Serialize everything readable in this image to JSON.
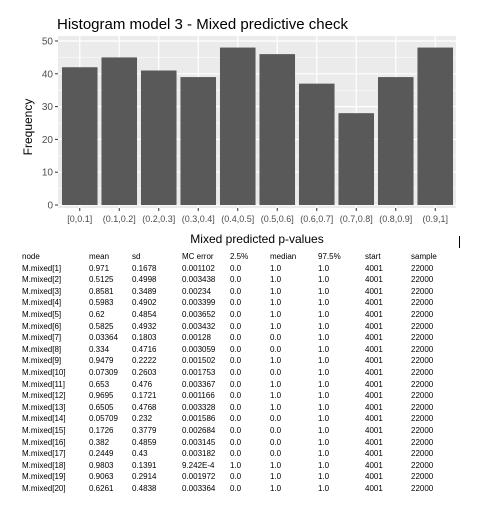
{
  "chart_data": {
    "type": "bar",
    "title": "Histogram model 3 - Mixed predictive check",
    "xlabel": "Mixed predicted p-values",
    "ylabel": "Frequency",
    "categories": [
      "[0,0.1]",
      "(0.1,0.2]",
      "(0.2,0.3]",
      "(0.3,0.4]",
      "(0.4,0.5]",
      "(0.5,0.6]",
      "(0.6,0.7]",
      "(0.7,0.8]",
      "(0.8,0.9]",
      "(0.9,1]"
    ],
    "values": [
      42,
      45,
      41,
      39,
      48,
      46,
      37,
      28,
      39,
      48
    ],
    "ylim": [
      0,
      50
    ],
    "yticks": [
      0,
      10,
      20,
      30,
      40,
      50
    ],
    "grid": true,
    "colors": {
      "panel": "#ebebeb",
      "bar": "#595959",
      "grid": "#ffffff"
    }
  },
  "table": {
    "headers": [
      "node",
      "mean",
      "sd",
      "MC error",
      "2.5%",
      "median",
      "97.5%",
      "start",
      "sample"
    ],
    "rows": [
      [
        "M.mixed[1]",
        "0.971",
        "0.1678",
        "0.001102",
        "0.0",
        "1.0",
        "1.0",
        "4001",
        "22000"
      ],
      [
        "M.mixed[2]",
        "0.5125",
        "0.4998",
        "0.003438",
        "0.0",
        "1.0",
        "1.0",
        "4001",
        "22000"
      ],
      [
        "M.mixed[3]",
        "0.8581",
        "0.3489",
        "0.00234",
        "0.0",
        "1.0",
        "1.0",
        "4001",
        "22000"
      ],
      [
        "M.mixed[4]",
        "0.5983",
        "0.4902",
        "0.003399",
        "0.0",
        "1.0",
        "1.0",
        "4001",
        "22000"
      ],
      [
        "M.mixed[5]",
        "0.62",
        "0.4854",
        "0.003652",
        "0.0",
        "1.0",
        "1.0",
        "4001",
        "22000"
      ],
      [
        "M.mixed[6]",
        "0.5825",
        "0.4932",
        "0.003432",
        "0.0",
        "1.0",
        "1.0",
        "4001",
        "22000"
      ],
      [
        "M.mixed[7]",
        "0.03364",
        "0.1803",
        "0.00128",
        "0.0",
        "0.0",
        "1.0",
        "4001",
        "22000"
      ],
      [
        "M.mixed[8]",
        "0.334",
        "0.4716",
        "0.003059",
        "0.0",
        "0.0",
        "1.0",
        "4001",
        "22000"
      ],
      [
        "M.mixed[9]",
        "0.9479",
        "0.2222",
        "0.001502",
        "0.0",
        "1.0",
        "1.0",
        "4001",
        "22000"
      ],
      [
        "M.mixed[10]",
        "0.07309",
        "0.2603",
        "0.001753",
        "0.0",
        "0.0",
        "1.0",
        "4001",
        "22000"
      ],
      [
        "M.mixed[11]",
        "0.653",
        "0.476",
        "0.003367",
        "0.0",
        "1.0",
        "1.0",
        "4001",
        "22000"
      ],
      [
        "M.mixed[12]",
        "0.9695",
        "0.1721",
        "0.001166",
        "0.0",
        "1.0",
        "1.0",
        "4001",
        "22000"
      ],
      [
        "M.mixed[13]",
        "0.6505",
        "0.4768",
        "0.003328",
        "0.0",
        "1.0",
        "1.0",
        "4001",
        "22000"
      ],
      [
        "M.mixed[14]",
        "0.05709",
        "0.232",
        "0.001586",
        "0.0",
        "0.0",
        "1.0",
        "4001",
        "22000"
      ],
      [
        "M.mixed[15]",
        "0.1726",
        "0.3779",
        "0.002684",
        "0.0",
        "0.0",
        "1.0",
        "4001",
        "22000"
      ],
      [
        "M.mixed[16]",
        "0.382",
        "0.4859",
        "0.003145",
        "0.0",
        "0.0",
        "1.0",
        "4001",
        "22000"
      ],
      [
        "M.mixed[17]",
        "0.2449",
        "0.43",
        "0.003182",
        "0.0",
        "0.0",
        "1.0",
        "4001",
        "22000"
      ],
      [
        "M.mixed[18]",
        "0.9803",
        "0.1391",
        "9.242E-4",
        "1.0",
        "1.0",
        "1.0",
        "4001",
        "22000"
      ],
      [
        "M.mixed[19]",
        "0.9063",
        "0.2914",
        "0.001972",
        "0.0",
        "1.0",
        "1.0",
        "4001",
        "22000"
      ],
      [
        "M.mixed[20]",
        "0.6261",
        "0.4838",
        "0.003364",
        "0.0",
        "1.0",
        "1.0",
        "4001",
        "22000"
      ]
    ]
  }
}
